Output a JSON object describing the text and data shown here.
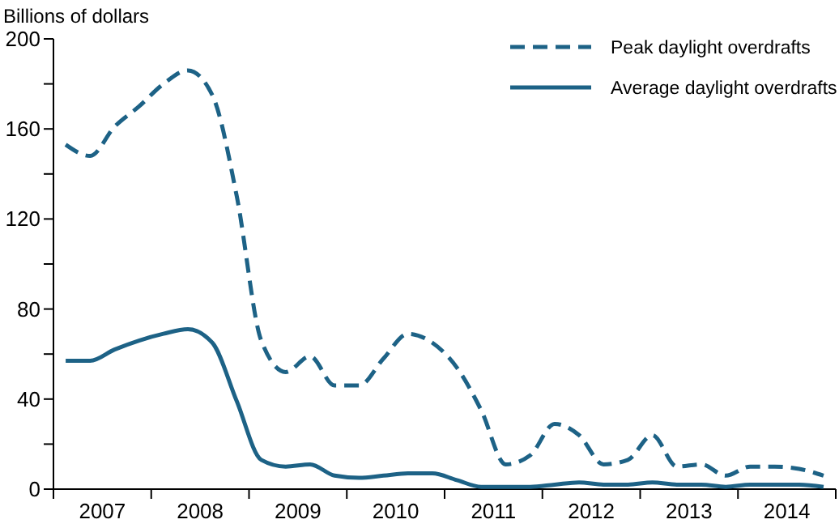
{
  "chart_data": {
    "type": "line",
    "ylabel": "Billions of dollars",
    "x": [
      2007.125,
      2007.375,
      2007.625,
      2007.875,
      2008.125,
      2008.375,
      2008.625,
      2008.875,
      2009.125,
      2009.375,
      2009.625,
      2009.875,
      2010.125,
      2010.375,
      2010.625,
      2010.875,
      2011.125,
      2011.375,
      2011.625,
      2011.875,
      2012.125,
      2012.375,
      2012.625,
      2012.875,
      2013.125,
      2013.375,
      2013.625,
      2013.875,
      2014.125,
      2014.375,
      2014.625,
      2014.875
    ],
    "series": [
      {
        "name": "Peak daylight overdrafts",
        "color": "#1d6286",
        "line_style": "dashed",
        "values": [
          153,
          148,
          161,
          170,
          180,
          186,
          175,
          130,
          66,
          52,
          59,
          46,
          46,
          58,
          69,
          65,
          54,
          35,
          11,
          15,
          29,
          24,
          11,
          13,
          24,
          10,
          11,
          6,
          10,
          10,
          9,
          6
        ]
      },
      {
        "name": "Average daylight overdrafts",
        "color": "#1d6286",
        "line_style": "solid",
        "values": [
          57,
          57,
          62,
          66,
          69,
          71,
          65,
          39,
          13,
          10,
          11,
          6,
          5,
          6,
          7,
          7,
          4,
          1,
          1,
          1,
          2,
          3,
          2,
          2,
          3,
          2,
          2,
          1,
          2,
          2,
          2,
          1
        ]
      }
    ],
    "xlim": [
      2007,
      2015
    ],
    "xticks": [
      {
        "value": 2007,
        "label": null
      },
      {
        "value": 2007.5,
        "label": "2007"
      },
      {
        "value": 2008,
        "label": null
      },
      {
        "value": 2008.5,
        "label": "2008"
      },
      {
        "value": 2009,
        "label": null
      },
      {
        "value": 2009.5,
        "label": "2009"
      },
      {
        "value": 2010,
        "label": null
      },
      {
        "value": 2010.5,
        "label": "2010"
      },
      {
        "value": 2011,
        "label": null
      },
      {
        "value": 2011.5,
        "label": "2011"
      },
      {
        "value": 2012,
        "label": null
      },
      {
        "value": 2012.5,
        "label": "2012"
      },
      {
        "value": 2013,
        "label": null
      },
      {
        "value": 2013.5,
        "label": "2013"
      },
      {
        "value": 2014,
        "label": null
      },
      {
        "value": 2014.5,
        "label": "2014"
      },
      {
        "value": 2015,
        "label": null
      }
    ],
    "ylim": [
      0,
      200
    ],
    "yticks": [
      0,
      {
        "value": 20,
        "label": null
      },
      40,
      {
        "value": 60,
        "label": null
      },
      80,
      {
        "value": 100,
        "label": null
      },
      120,
      {
        "value": 140,
        "label": null
      },
      160,
      {
        "value": 180,
        "label": null
      },
      200
    ],
    "grid": false,
    "legend": "top right",
    "marker": "none"
  }
}
